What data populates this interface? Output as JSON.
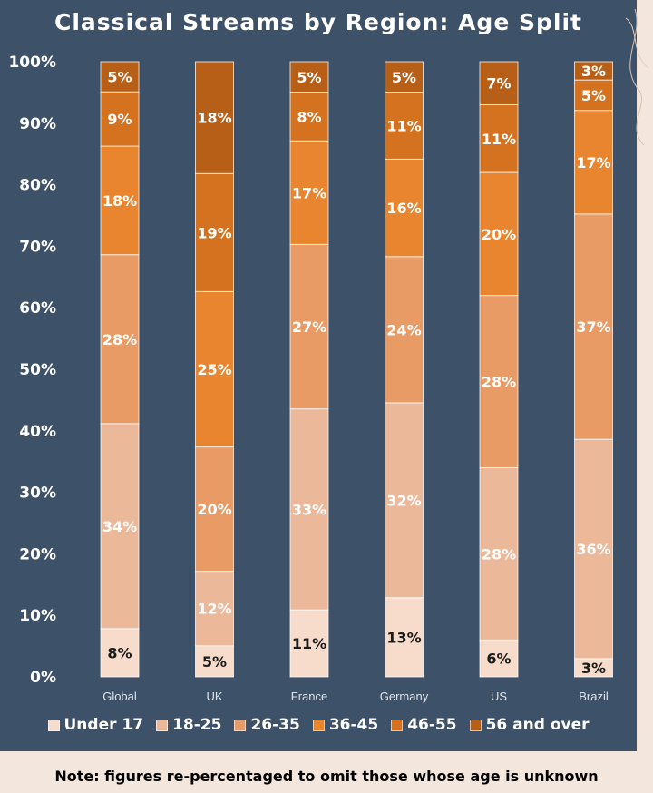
{
  "chart_data": {
    "type": "bar",
    "stacked": true,
    "title": "Classical Streams by Region: Age Split",
    "categories": [
      "Global",
      "UK",
      "France",
      "Germany",
      "US",
      "Brazil"
    ],
    "ylim": [
      0,
      100
    ],
    "yticks": [
      "0%",
      "10%",
      "20%",
      "30%",
      "40%",
      "50%",
      "60%",
      "70%",
      "80%",
      "90%",
      "100%"
    ],
    "legend_position": "bottom",
    "grid": false,
    "series": [
      {
        "name": "Under 17",
        "color": "#f7dccb",
        "values": [
          8,
          5,
          11,
          13,
          6,
          3
        ],
        "labels": [
          "8%",
          "5%",
          "11%",
          "13%",
          "6%",
          "3%"
        ]
      },
      {
        "name": "18-25",
        "color": "#ebb89a",
        "values": [
          34,
          12,
          33,
          32,
          28,
          36
        ],
        "labels": [
          "34%",
          "12%",
          "33%",
          "32%",
          "28%",
          "36%"
        ]
      },
      {
        "name": "26-35",
        "color": "#e99b66",
        "values": [
          28,
          20,
          27,
          24,
          28,
          37
        ],
        "labels": [
          "28%",
          "20%",
          "27%",
          "24%",
          "28%",
          "37%"
        ]
      },
      {
        "name": "36-45",
        "color": "#e8852e",
        "values": [
          18,
          25,
          17,
          16,
          20,
          17
        ],
        "labels": [
          "18%",
          "25%",
          "17%",
          "16%",
          "20%",
          "17%"
        ]
      },
      {
        "name": "46-55",
        "color": "#d4721f",
        "values": [
          9,
          19,
          8,
          11,
          11,
          5
        ],
        "labels": [
          "9%",
          "19%",
          "8%",
          "11%",
          "11%",
          "5%"
        ]
      },
      {
        "name": "56 and over",
        "color": "#b85f17",
        "values": [
          5,
          18,
          5,
          5,
          7,
          3
        ],
        "labels": [
          "5%",
          "18%",
          "5%",
          "5%",
          "7%",
          "3%"
        ]
      }
    ]
  },
  "note": "Note: figures re-percentaged to omit those whose age is unknown"
}
